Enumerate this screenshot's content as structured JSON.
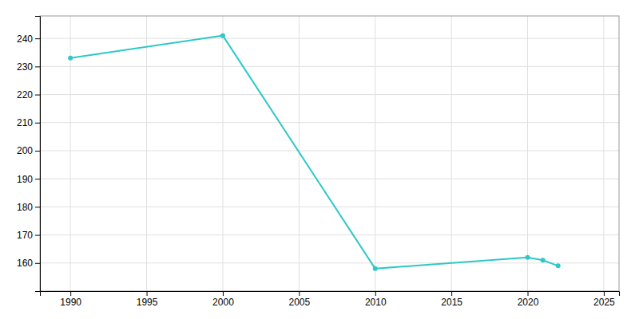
{
  "chart_data": {
    "type": "line",
    "x": [
      1990,
      2000,
      2010,
      2020,
      2021,
      2022
    ],
    "values": [
      233,
      241,
      158,
      162,
      161,
      159
    ],
    "color": "#2ec8c8",
    "marker": "circle",
    "xlim": [
      1988,
      2026
    ],
    "ylim": [
      150,
      248
    ],
    "xticks": [
      1990,
      1995,
      2000,
      2005,
      2010,
      2015,
      2020,
      2025
    ],
    "yticks": [
      160,
      170,
      180,
      190,
      200,
      210,
      220,
      230,
      240
    ],
    "grid": true
  }
}
